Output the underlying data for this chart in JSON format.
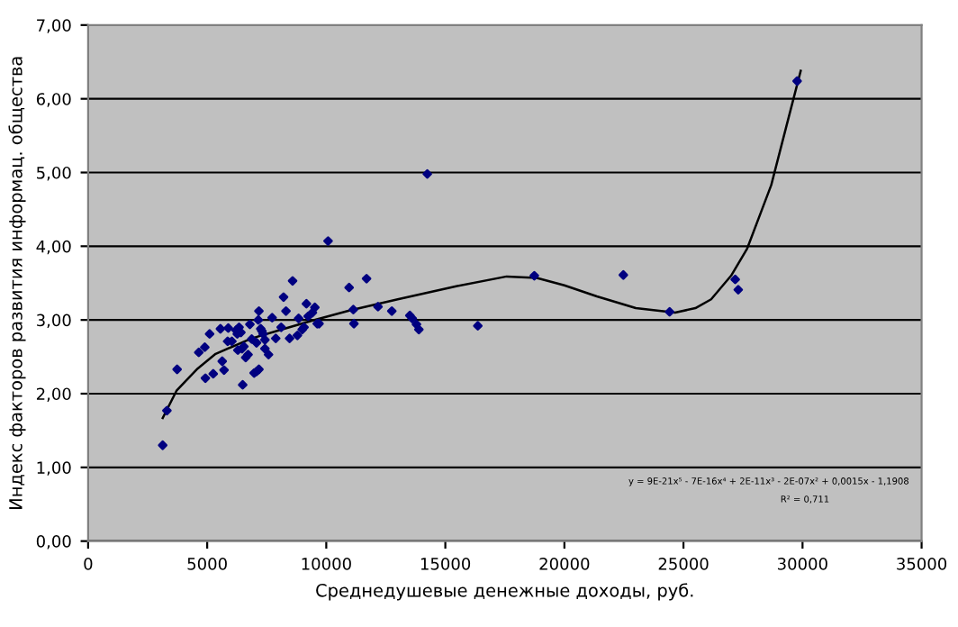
{
  "chart_data": {
    "type": "scatter",
    "xlabel": "Среднедушевые денежные доходы, руб.",
    "ylabel": "Индекс факторов развития информац. общества",
    "xlim": [
      0,
      35000
    ],
    "xticks": [
      0,
      5000,
      10000,
      15000,
      20000,
      25000,
      30000,
      35000
    ],
    "ylim": [
      0,
      7
    ],
    "yticks": [
      {
        "value": 0,
        "label": "0,00"
      },
      {
        "value": 1,
        "label": "1,00"
      },
      {
        "value": 2,
        "label": "2,00"
      },
      {
        "value": 3,
        "label": "3,00"
      },
      {
        "value": 4,
        "label": "4,00"
      },
      {
        "value": 5,
        "label": "5,00"
      },
      {
        "value": 6,
        "label": "6,00"
      },
      {
        "value": 7,
        "label": "7,00"
      }
    ],
    "grid": "y",
    "legend": false,
    "series": [
      {
        "marker": "diamond",
        "color": "#000080",
        "x": [
          3131,
          3308,
          3737,
          4646,
          4899,
          5101,
          4924,
          5253,
          5556,
          5885,
          5631,
          5707,
          5859,
          6036,
          6212,
          6338,
          6263,
          6414,
          6288,
          6465,
          6540,
          6490,
          6616,
          6717,
          6793,
          6869,
          6970,
          7071,
          7172,
          7071,
          7172,
          7248,
          7146,
          7298,
          7424,
          7348,
          7424,
          7576,
          7727,
          7879,
          8106,
          8207,
          8308,
          8459,
          8586,
          8788,
          8839,
          8990,
          9066,
          9167,
          9242,
          9419,
          9520,
          9621,
          9697,
          10076,
          10960,
          11136,
          11162,
          11692,
          12172,
          12753,
          13510,
          13611,
          13788,
          13889,
          14243,
          16364,
          18737,
          22475,
          24419,
          27173,
          27300,
          29773
        ],
        "values": [
          1.3,
          1.77,
          2.33,
          2.56,
          2.63,
          2.81,
          2.21,
          2.27,
          2.88,
          2.89,
          2.44,
          2.32,
          2.71,
          2.71,
          2.86,
          2.9,
          2.81,
          2.83,
          2.59,
          2.61,
          2.64,
          2.12,
          2.49,
          2.53,
          2.94,
          2.74,
          2.28,
          2.3,
          2.33,
          2.69,
          3.12,
          2.88,
          3.0,
          2.85,
          2.73,
          2.81,
          2.61,
          2.53,
          3.03,
          2.75,
          2.9,
          3.31,
          3.12,
          2.75,
          3.53,
          2.79,
          3.02,
          2.87,
          2.9,
          3.22,
          3.05,
          3.1,
          3.17,
          2.95,
          2.95,
          4.07,
          3.44,
          3.14,
          2.95,
          3.56,
          3.18,
          3.12,
          3.06,
          3.02,
          2.94,
          2.87,
          4.98,
          2.92,
          3.6,
          3.61,
          3.11,
          3.55,
          3.41,
          6.24
        ]
      },
      {
        "type": "line",
        "color": "#000000",
        "line_style": "solid",
        "x": [
          3131,
          3712,
          4596,
          5353,
          6869,
          8131,
          9394,
          11000,
          13000,
          15500,
          17576,
          18838,
          20000,
          21364,
          23000,
          24647,
          25500,
          26162,
          27000,
          27677,
          28300,
          28687,
          29300,
          29924
        ],
        "values": [
          1.67,
          2.04,
          2.34,
          2.54,
          2.75,
          2.87,
          2.99,
          3.13,
          3.28,
          3.46,
          3.59,
          3.57,
          3.47,
          3.32,
          3.16,
          3.1,
          3.16,
          3.28,
          3.6,
          3.97,
          4.5,
          4.83,
          5.6,
          6.38
        ]
      }
    ],
    "annotations": [
      "y = 9E-21x⁵ - 7E-16x⁴ + 2E-11x³ - 2E-07x² + 0,0015x - 1,1908",
      "R² = 0,711"
    ]
  }
}
